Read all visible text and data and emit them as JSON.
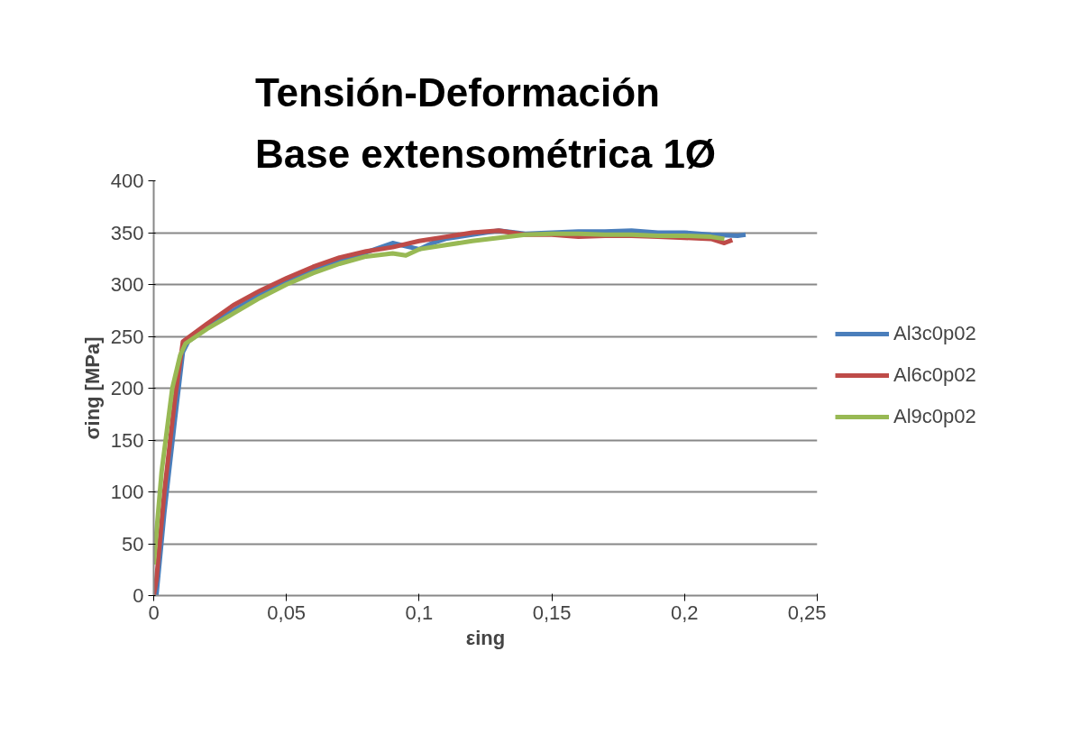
{
  "chart_data": {
    "type": "line",
    "title": "Tensión-Deformación\nBase extensométrica 1Ø",
    "xlabel": "εing",
    "ylabel": "σing [MPa]",
    "xlim": [
      0,
      0.25
    ],
    "ylim": [
      0,
      400
    ],
    "xticks": [
      {
        "value": 0,
        "label": "0"
      },
      {
        "value": 0.05,
        "label": "0,05"
      },
      {
        "value": 0.1,
        "label": "0,1"
      },
      {
        "value": 0.15,
        "label": "0,15"
      },
      {
        "value": 0.2,
        "label": "0,2"
      },
      {
        "value": 0.25,
        "label": "0,25"
      }
    ],
    "yticks": [
      0,
      50,
      100,
      150,
      200,
      250,
      300,
      350,
      400
    ],
    "grid": "y",
    "legend": "right",
    "marker": "none",
    "line_style": "solid",
    "series": [
      {
        "name": "Al3c0p02",
        "color": "#4a7ebb",
        "x": [
          0.001,
          0.004,
          0.008,
          0.011,
          0.013,
          0.02,
          0.03,
          0.04,
          0.05,
          0.06,
          0.07,
          0.08,
          0.09,
          0.095,
          0.1,
          0.105,
          0.11,
          0.12,
          0.13,
          0.14,
          0.15,
          0.16,
          0.17,
          0.18,
          0.19,
          0.2,
          0.21,
          0.22,
          0.223
        ],
        "values": [
          0,
          80,
          170,
          235,
          245,
          258,
          275,
          290,
          303,
          314,
          323,
          331,
          340,
          337,
          334,
          340,
          344,
          348,
          352,
          349,
          350,
          351,
          351,
          352,
          350,
          350,
          348,
          347,
          348
        ]
      },
      {
        "name": "Al6c0p02",
        "color": "#be4b48",
        "x": [
          0,
          0.001,
          0.004,
          0.008,
          0.011,
          0.02,
          0.03,
          0.04,
          0.05,
          0.06,
          0.07,
          0.08,
          0.09,
          0.1,
          0.11,
          0.12,
          0.13,
          0.14,
          0.15,
          0.16,
          0.17,
          0.18,
          0.19,
          0.2,
          0.21,
          0.215,
          0.218
        ],
        "values": [
          0,
          15,
          100,
          190,
          245,
          262,
          280,
          294,
          306,
          317,
          326,
          332,
          336,
          342,
          346,
          350,
          352,
          348,
          348,
          346,
          347,
          347,
          346,
          345,
          344,
          340,
          343
        ]
      },
      {
        "name": "Al9c0p02",
        "color": "#98b954",
        "x": [
          0,
          0.003,
          0.007,
          0.01,
          0.012,
          0.02,
          0.03,
          0.04,
          0.05,
          0.06,
          0.07,
          0.08,
          0.09,
          0.095,
          0.1,
          0.11,
          0.12,
          0.13,
          0.14,
          0.15,
          0.16,
          0.17,
          0.18,
          0.19,
          0.2,
          0.21,
          0.215
        ],
        "values": [
          30,
          120,
          200,
          232,
          243,
          257,
          272,
          287,
          300,
          311,
          320,
          327,
          330,
          328,
          334,
          338,
          342,
          345,
          348,
          349,
          349,
          348,
          348,
          347,
          347,
          346,
          344
        ]
      }
    ]
  }
}
